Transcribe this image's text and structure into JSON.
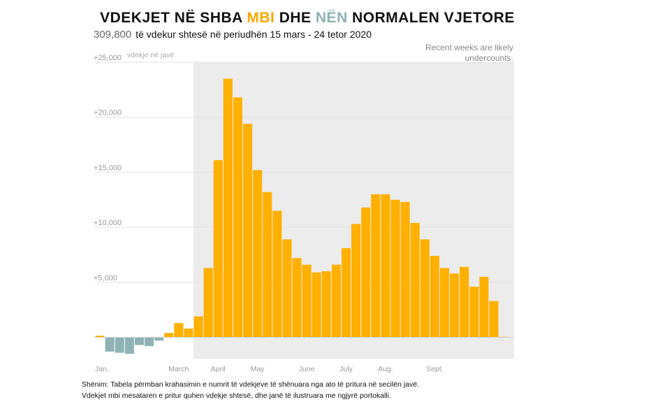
{
  "header": {
    "title_part1": "VDEKJET NË SHBA ",
    "title_above": "MBI",
    "title_part2": " DHE ",
    "title_below": "NËN",
    "title_part3": " NORMALEN VJETORE",
    "total": "309,800",
    "subtitle": "të vdekur shtesë në periudhën 15 mars - 24 tetor 2020"
  },
  "note_top": "Recent weeks are likely undercounts.",
  "footnote": {
    "line1": "Shënim: Tabela përmban krahasimin e numrit të vdekjeve të shënuara nga ato të pritura në secilën javë.",
    "line2": "Vdekjet  mbi mesataren e pritur quhen vdekje shtesë, dhe janë të ilustruara me ngjyrë portokalli."
  },
  "colors": {
    "above": "#ffb000",
    "below": "#8fb3b5",
    "shade": "#ececec",
    "grid": "#e2e2e2",
    "axis_text": "#999999"
  },
  "chart_data": {
    "type": "bar",
    "title": "VDEKJET NË SHBA MBI DHE NËN NORMALEN VJETORE",
    "ylabel": "vdekje në javë",
    "ylim": [
      -1800,
      25000
    ],
    "y_ticks": [
      5000,
      10000,
      15000,
      20000,
      25000
    ],
    "y_tick_labels": [
      "+5,000",
      "+10,000",
      "+15,000",
      "+20,000",
      "+25,000"
    ],
    "x_labels": [
      "Jan.",
      "March",
      "April",
      "May",
      "June",
      "July",
      "Aug.",
      "Sept."
    ],
    "x_label_weeks": [
      0,
      8.5,
      12.5,
      16.5,
      21.5,
      25.5,
      29.5,
      34.5
    ],
    "shade_from_week": 10,
    "series": [
      {
        "values": [
          150,
          -1300,
          -1400,
          -1500,
          -700,
          -800,
          -300,
          400,
          1300,
          800,
          1900,
          6300,
          16100,
          23500,
          21800,
          19400,
          15200,
          13200,
          11500,
          8900,
          7200,
          6600,
          5900,
          6000,
          6600,
          8100,
          10300,
          11800,
          13000,
          13000,
          12500,
          12300,
          10400,
          8900,
          7400,
          6300,
          5800,
          6400,
          4600,
          5500,
          3300,
          50
        ]
      }
    ]
  }
}
